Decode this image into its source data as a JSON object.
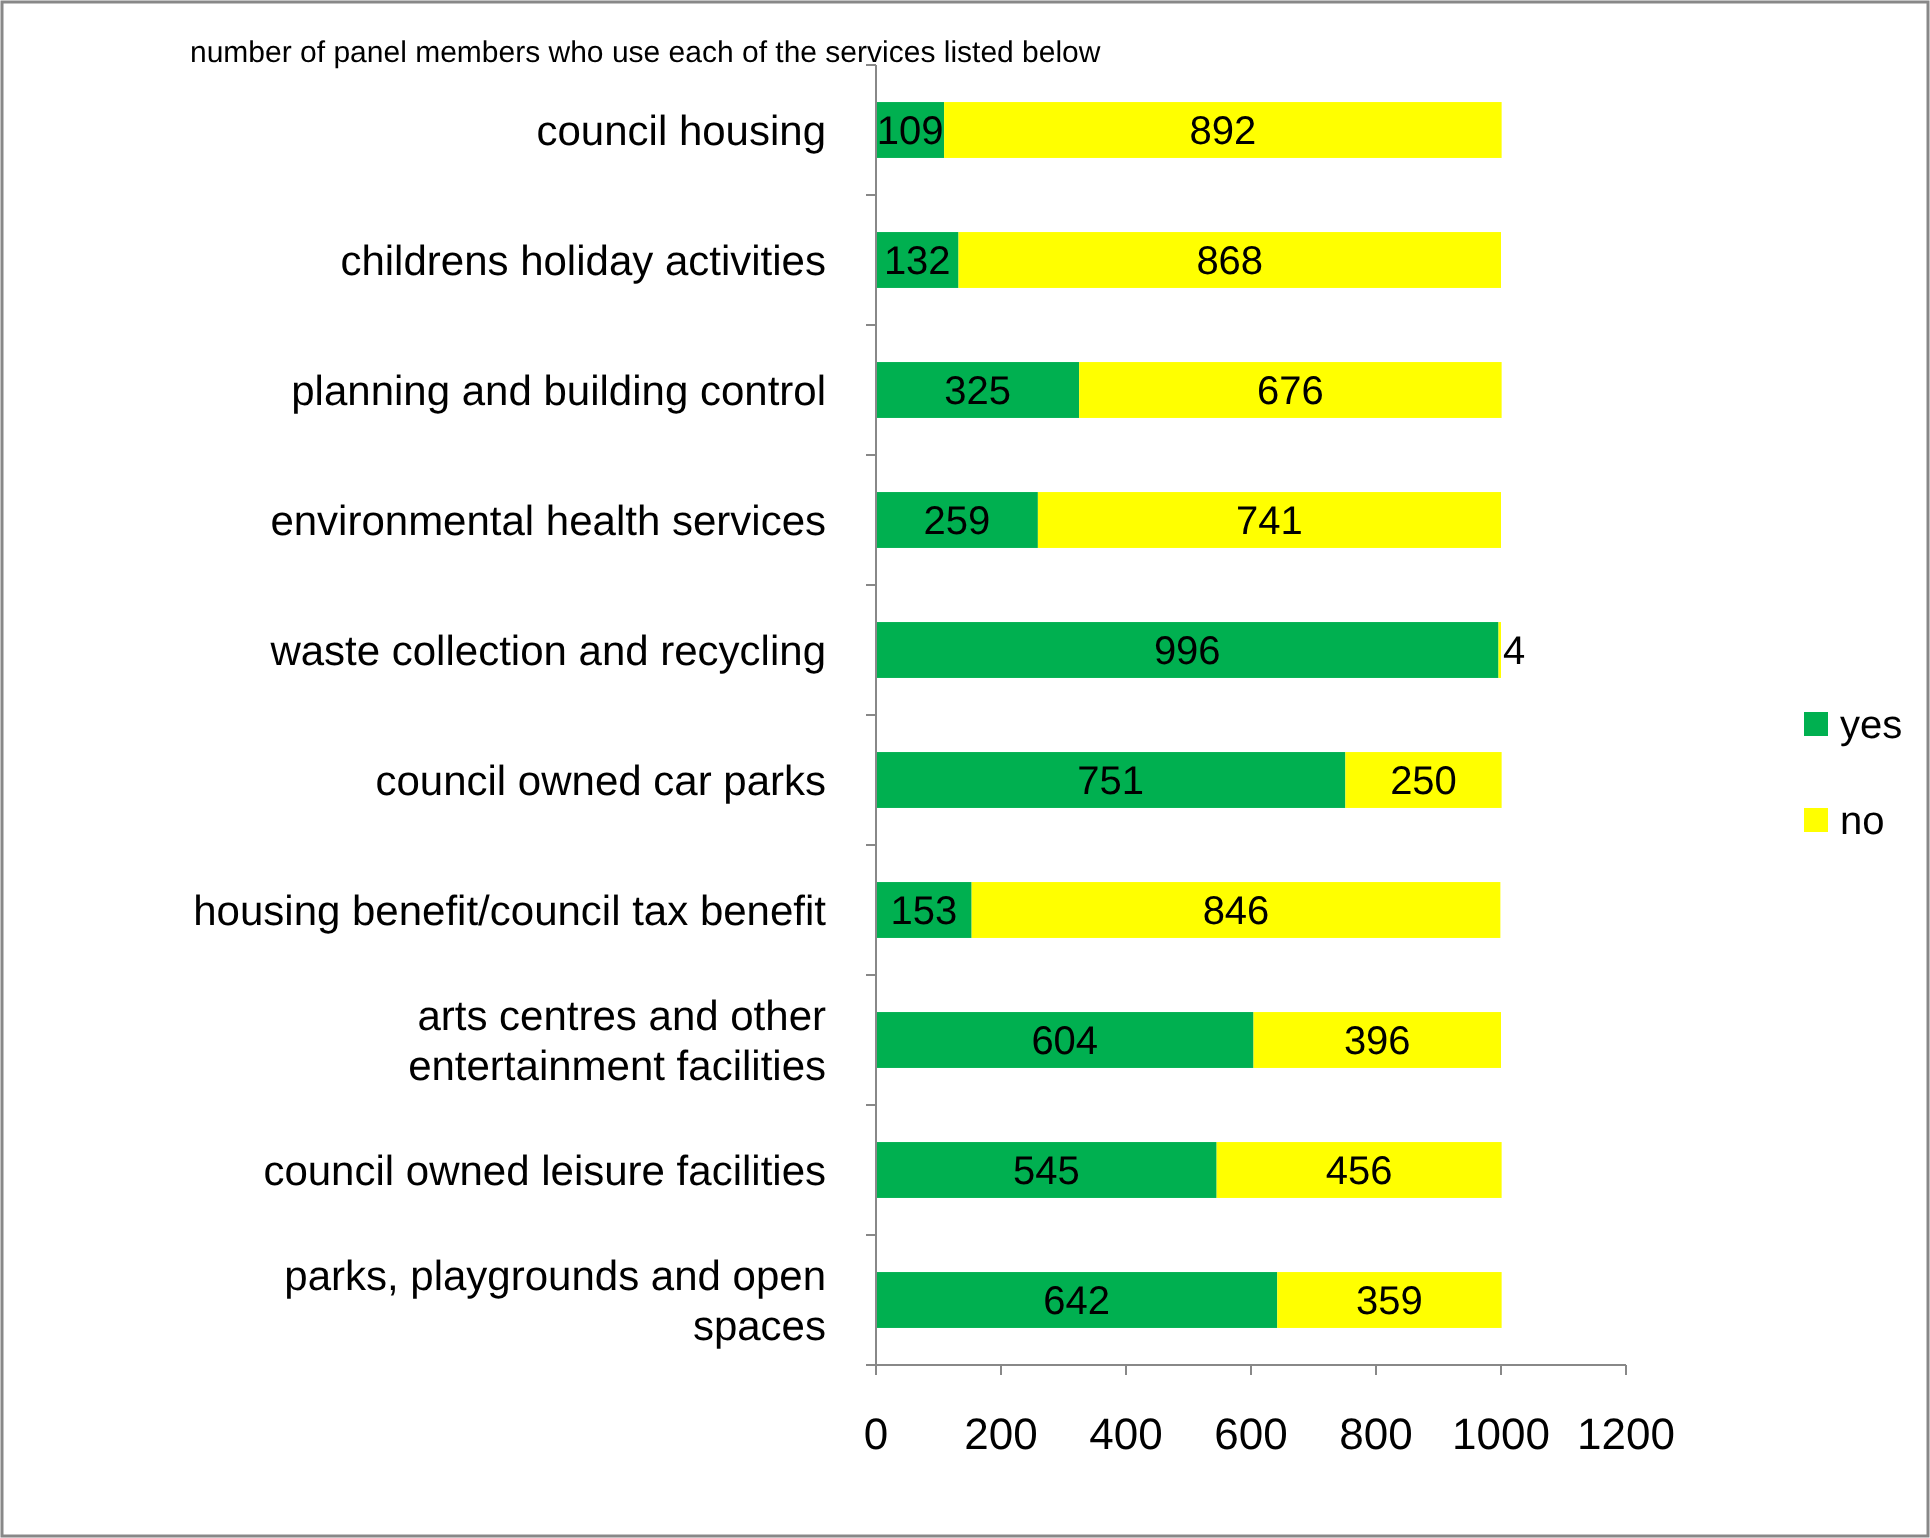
{
  "chart_data": {
    "type": "bar",
    "orientation": "horizontal",
    "stacked": true,
    "title": "number of panel members who use each of the services listed below",
    "categories": [
      "council housing",
      "childrens holiday activities",
      "planning and building control",
      "environmental health services",
      "waste collection and recycling",
      "council owned car parks",
      "housing benefit/council tax benefit",
      "arts centres and other entertainment facilities",
      "council owned leisure facilities",
      "parks, playgrounds and open spaces"
    ],
    "series": [
      {
        "name": "yes",
        "color": "#00b050",
        "values": [
          109,
          132,
          325,
          259,
          996,
          751,
          153,
          604,
          545,
          642
        ]
      },
      {
        "name": "no",
        "color": "#ffff00",
        "values": [
          892,
          868,
          676,
          741,
          4,
          250,
          846,
          396,
          456,
          359
        ]
      }
    ],
    "xlim": [
      0,
      1200
    ],
    "xticks": [
      0,
      200,
      400,
      600,
      800,
      1000,
      1200
    ],
    "data_labels": true,
    "legend": "right",
    "grid": false
  }
}
